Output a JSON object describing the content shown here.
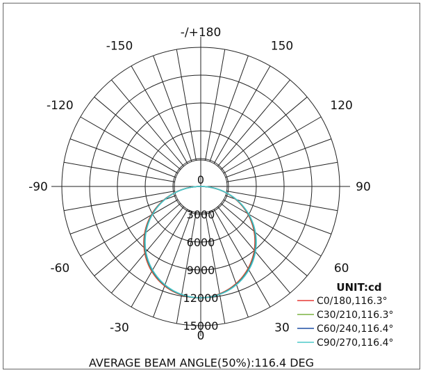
{
  "chart_data": {
    "type": "polar",
    "angle_labels": [
      {
        "angle": 0,
        "text": "-/+180"
      },
      {
        "angle": 30,
        "text": "150"
      },
      {
        "angle": -30,
        "text": "-150"
      },
      {
        "angle": 60,
        "text": "120"
      },
      {
        "angle": -60,
        "text": "-120"
      },
      {
        "angle": 90,
        "text": "90"
      },
      {
        "angle": -90,
        "text": "-90"
      },
      {
        "angle": 120,
        "text": "60"
      },
      {
        "angle": -120,
        "text": "-60"
      },
      {
        "angle": 150,
        "text": "30"
      },
      {
        "angle": -150,
        "text": "-30"
      },
      {
        "angle": 180,
        "text": "0"
      }
    ],
    "radial_ticks": [
      0,
      3000,
      6000,
      9000,
      12000,
      15000
    ],
    "radial_max": 15000,
    "gridline_step_deg": 10,
    "unit_label": "UNIT:cd",
    "series": [
      {
        "name": "C0/180,116.3°",
        "color": "#e53935",
        "peak": 12000,
        "skew": -0.035
      },
      {
        "name": "C30/210,116.3°",
        "color": "#7cb342",
        "peak": 12000,
        "skew": -0.02
      },
      {
        "name": "C60/240,116.4°",
        "color": "#1e4fa3",
        "peak": 12000,
        "skew": -0.01
      },
      {
        "name": "C90/270,116.4°",
        "color": "#4dc8c8",
        "peak": 12000,
        "skew": 0.0
      }
    ],
    "footer": "AVERAGE BEAM ANGLE(50%):116.4 DEG"
  }
}
